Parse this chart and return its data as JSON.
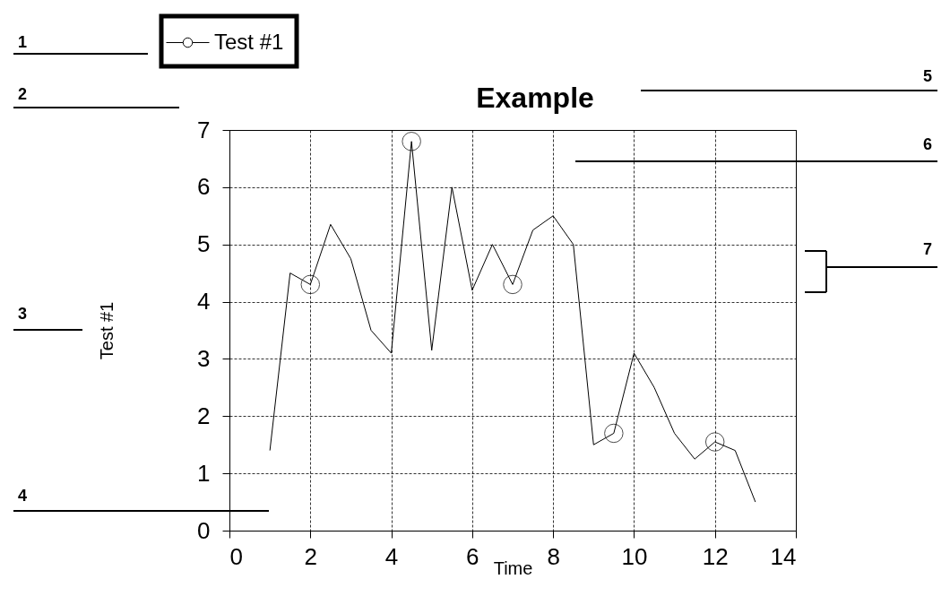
{
  "chart_data": {
    "type": "line",
    "title": "Example",
    "xlabel": "Time",
    "ylabel": "Test #1",
    "x": [
      1,
      1.5,
      2,
      2.5,
      3,
      3.5,
      4,
      4.5,
      5,
      5.5,
      6,
      6.5,
      7,
      7.5,
      8,
      8.5,
      9,
      9.5,
      10,
      10.5,
      11,
      11.5,
      12,
      12.5,
      13
    ],
    "series": [
      {
        "name": "Test #1",
        "color": "#000000",
        "marker": "none",
        "values": [
          1.4,
          4.5,
          4.3,
          5.35,
          4.75,
          3.5,
          3.1,
          6.8,
          3.15,
          6.0,
          4.2,
          5.0,
          4.3,
          5.25,
          5.5,
          5.0,
          1.5,
          1.7,
          3.1,
          2.5,
          1.7,
          1.25,
          1.55,
          1.4,
          0.5
        ]
      },
      {
        "type": "scatter",
        "color": "#000000",
        "marker": "circle",
        "x": [
          2,
          4.5,
          7,
          9.5,
          12
        ],
        "values": [
          4.3,
          6.8,
          4.3,
          1.7,
          1.55
        ]
      }
    ],
    "xlim": [
      0,
      14
    ],
    "xticks": [
      0,
      2,
      4,
      6,
      8,
      10,
      12,
      14
    ],
    "ylim": [
      0,
      7
    ],
    "yticks": [
      0,
      1,
      2,
      3,
      4,
      5,
      6,
      7
    ],
    "grid": true,
    "legend": "top left",
    "line_style": "solid",
    "annotations": [
      "1",
      "2",
      "3",
      "4",
      "5",
      "6",
      "7"
    ]
  }
}
